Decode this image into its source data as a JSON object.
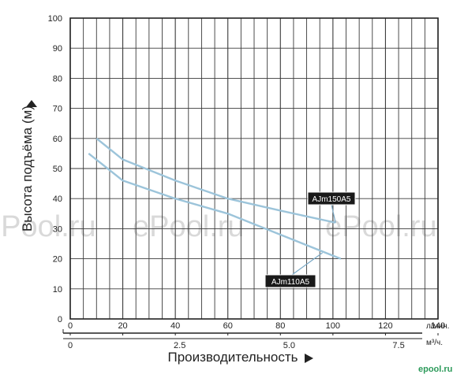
{
  "chart_data": {
    "type": "line",
    "ylabel": "Высота подъёма (м)",
    "xlabel": "Производительность",
    "ylim": [
      0,
      100
    ],
    "yticks": [
      0,
      10,
      20,
      30,
      40,
      50,
      60,
      70,
      80,
      90,
      100
    ],
    "xlim": [
      0,
      140
    ],
    "x_primary_unit": "л/мин.",
    "x_primary_ticks": [
      0,
      20,
      40,
      60,
      80,
      100,
      120,
      140
    ],
    "x_secondary_unit": "м³/ч.",
    "x_secondary_ticks": [
      {
        "value": 0,
        "label": "0"
      },
      {
        "value": 2.5,
        "label": "2.5"
      },
      {
        "value": 5.0,
        "label": "5.0"
      },
      {
        "value": 7.5,
        "label": "7.5"
      }
    ],
    "grid": true,
    "series": [
      {
        "name": "AJm150A5",
        "color": "#9cc4da",
        "x": [
          10,
          20,
          40,
          60,
          80,
          101
        ],
        "y": [
          60,
          53,
          46,
          40,
          36,
          32
        ]
      },
      {
        "name": "AJm110A5",
        "color": "#9cc4da",
        "x": [
          7,
          20,
          40,
          60,
          80,
          103
        ],
        "y": [
          55,
          46,
          40,
          35,
          28,
          20
        ]
      }
    ]
  },
  "watermark": "ePool.ru",
  "corner_logo": "epool.ru"
}
